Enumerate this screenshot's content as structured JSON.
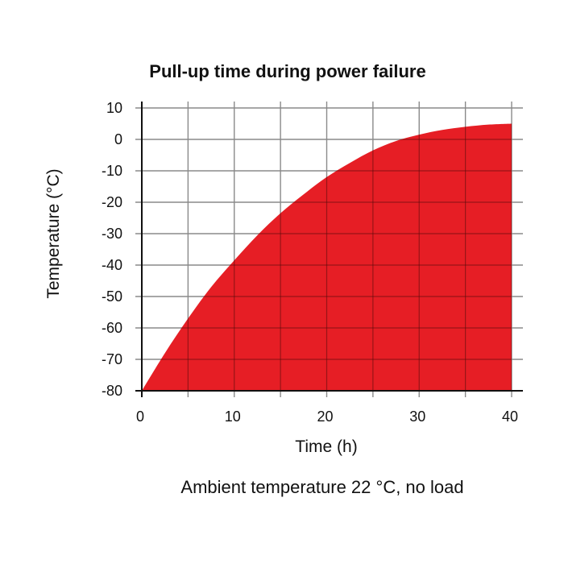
{
  "chart_data": {
    "type": "area",
    "title": "Pull-up time during power failure",
    "xlabel": "Time (h)",
    "ylabel": "Temperature (°C)",
    "caption": "Ambient temperature 22 °C, no load",
    "xlim": [
      0,
      40
    ],
    "ylim": [
      -80,
      10
    ],
    "x_ticks": [
      0,
      10,
      20,
      30,
      40
    ],
    "y_ticks": [
      10,
      0,
      -10,
      -20,
      -30,
      -40,
      -50,
      -60,
      -70,
      -80
    ],
    "grid": true,
    "series": [
      {
        "x": [
          0,
          2.5,
          5,
          7.5,
          10,
          12.5,
          15,
          17.5,
          20,
          22.5,
          25,
          27.5,
          30,
          32.5,
          35,
          37.5,
          40
        ],
        "y": [
          -80,
          -68,
          -57,
          -47,
          -38.5,
          -30.5,
          -23.5,
          -17.5,
          -12,
          -7.5,
          -3.5,
          -0.5,
          1.5,
          3,
          4,
          4.7,
          5
        ]
      }
    ],
    "fill_color": "#e61e25",
    "grid_color": "#8a8a8a"
  }
}
